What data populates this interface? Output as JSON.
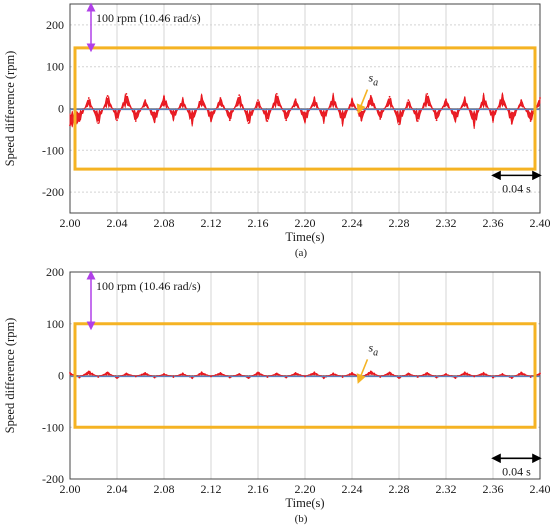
{
  "chart_data": [
    {
      "type": "line",
      "caption": "(a)",
      "xlabel": "Time(s)",
      "ylabel": "Speed difference (rpm)",
      "xlim": [
        2.0,
        2.4
      ],
      "ylim": [
        -250,
        250
      ],
      "xticks": [
        "2.00",
        "2.04",
        "2.08",
        "2.12",
        "2.16",
        "2.20",
        "2.24",
        "2.28",
        "2.32",
        "2.36",
        "2.40"
      ],
      "yticks": [
        "200",
        "100",
        "0",
        "-100",
        "-200"
      ],
      "grid": true,
      "series": [
        {
          "name": "s_a",
          "color": "#e8141c",
          "x": [
            2.0,
            2.008,
            2.016,
            2.024,
            2.032,
            2.04,
            2.048,
            2.056,
            2.064,
            2.072,
            2.08,
            2.088,
            2.096,
            2.104,
            2.112,
            2.12,
            2.128,
            2.136,
            2.144,
            2.152,
            2.16,
            2.168,
            2.176,
            2.184,
            2.192,
            2.2,
            2.208,
            2.216,
            2.224,
            2.232,
            2.24,
            2.248,
            2.256,
            2.264,
            2.272,
            2.28,
            2.288,
            2.296,
            2.304,
            2.312,
            2.32,
            2.328,
            2.336,
            2.344,
            2.352,
            2.36,
            2.368,
            2.376,
            2.384,
            2.392,
            2.4
          ],
          "y": [
            -40,
            -30,
            25,
            -35,
            30,
            -28,
            35,
            -30,
            20,
            -32,
            28,
            -25,
            22,
            -35,
            30,
            -30,
            25,
            -28,
            32,
            -35,
            20,
            -30,
            35,
            -28,
            22,
            -32,
            25,
            -30,
            30,
            -35,
            22,
            -28,
            30,
            -25,
            28,
            -38,
            20,
            -30,
            35,
            -28,
            22,
            -30,
            25,
            -40,
            30,
            -28,
            32,
            -35,
            20,
            -30,
            25
          ]
        }
      ],
      "annotations": {
        "amplitude_label": "100 rpm  (10.46 rad/s)",
        "series_label": "s",
        "series_label_sub": "a",
        "time_span_label": "0.04 s",
        "box_range": [
          -145,
          145
        ]
      }
    },
    {
      "type": "line",
      "caption": "(b)",
      "xlabel": "Time(s)",
      "ylabel": "Speed difference (rpm)",
      "xlim": [
        2.0,
        2.4
      ],
      "ylim": [
        -200,
        200
      ],
      "xticks": [
        "2.00",
        "2.04",
        "2.08",
        "2.12",
        "2.16",
        "2.20",
        "2.24",
        "2.28",
        "2.32",
        "2.36",
        "2.40"
      ],
      "yticks": [
        "200",
        "100",
        "0",
        "-100",
        "-200"
      ],
      "grid": true,
      "series": [
        {
          "name": "s_a",
          "color": "#e8141c",
          "x": [
            2.0,
            2.008,
            2.016,
            2.024,
            2.032,
            2.04,
            2.048,
            2.056,
            2.064,
            2.072,
            2.08,
            2.088,
            2.096,
            2.104,
            2.112,
            2.12,
            2.128,
            2.136,
            2.144,
            2.152,
            2.16,
            2.168,
            2.176,
            2.184,
            2.192,
            2.2,
            2.208,
            2.216,
            2.224,
            2.232,
            2.24,
            2.248,
            2.256,
            2.264,
            2.272,
            2.28,
            2.288,
            2.296,
            2.304,
            2.312,
            2.32,
            2.328,
            2.336,
            2.344,
            2.352,
            2.36,
            2.368,
            2.376,
            2.384,
            2.392,
            2.4
          ],
          "y": [
            5,
            -4,
            8,
            -3,
            6,
            -5,
            4,
            -2,
            5,
            -4,
            3,
            -3,
            4,
            -5,
            6,
            -2,
            5,
            -4,
            3,
            -5,
            6,
            -3,
            4,
            -4,
            5,
            -2,
            6,
            -5,
            4,
            -3,
            5,
            -4,
            8,
            -3,
            6,
            -5,
            4,
            -3,
            5,
            -4,
            3,
            -5,
            6,
            -2,
            5,
            -4,
            3,
            -5,
            6,
            -3,
            4
          ]
        }
      ],
      "annotations": {
        "amplitude_label": "100 rpm  (10.46 rad/s)",
        "series_label": "s",
        "series_label_sub": "a",
        "time_span_label": "0.04 s",
        "box_range": [
          -100,
          100
        ]
      }
    }
  ],
  "colors": {
    "box": "#f5b323",
    "amplitude_arrow": "#b040e8",
    "series_label_arrow": "#f5b323",
    "grid": "#d4d4d4",
    "mean_line": "#5a7fbf"
  }
}
